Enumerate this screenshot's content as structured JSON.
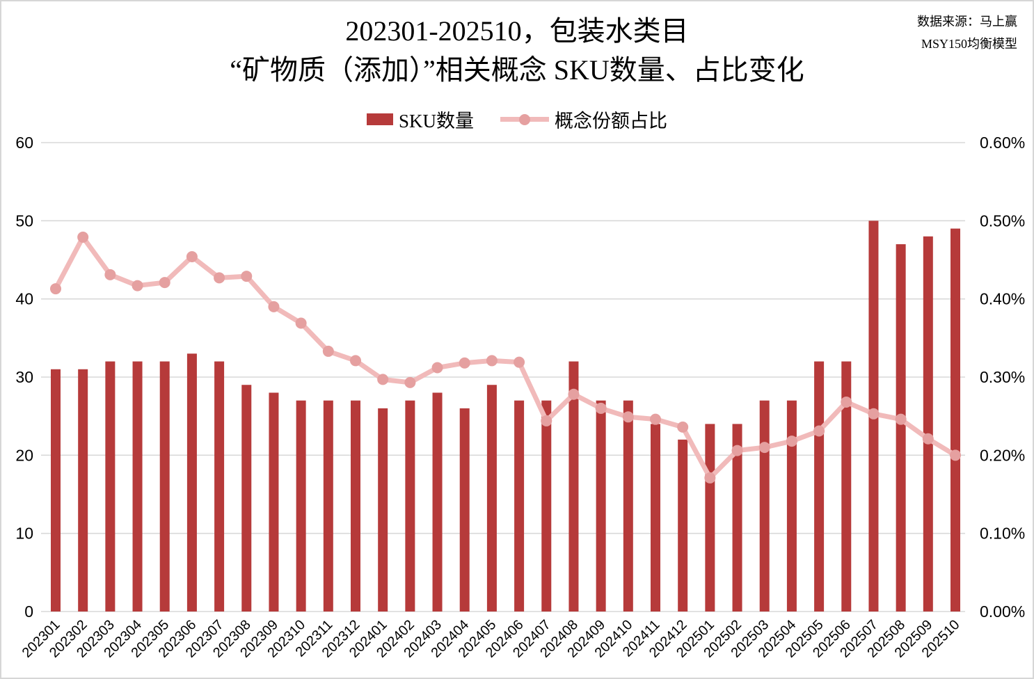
{
  "meta": {
    "title_line1": "202301-202510，包装水类目",
    "title_line2": "“矿物质（添加）”相关概念 SKU数量、占比变化",
    "source_line1": "数据来源：马上赢",
    "source_line2": "MSY150均衡模型"
  },
  "colors": {
    "bar": "#B63A3A",
    "line": "#F1BABA",
    "marker": "#E5A0A0",
    "gridline": "#D9D9D9",
    "text": "#000000"
  },
  "chart_data": {
    "type": "bar",
    "subtype": "bar-line combo, dual axis",
    "title": "202301-202510，包装水类目 “矿物质（添加）”相关概念 SKU数量、占比变化",
    "grid": true,
    "legend_position": "top",
    "categories": [
      "202301",
      "202302",
      "202303",
      "202304",
      "202305",
      "202306",
      "202307",
      "202308",
      "202309",
      "202310",
      "202311",
      "202312",
      "202401",
      "202402",
      "202403",
      "202404",
      "202405",
      "202406",
      "202407",
      "202408",
      "202409",
      "202410",
      "202411",
      "202412",
      "202501",
      "202502",
      "202503",
      "202504",
      "202505",
      "202506",
      "202507",
      "202508",
      "202509",
      "202510"
    ],
    "series": [
      {
        "name": "SKU数量",
        "type": "bar",
        "axis": "left",
        "values": [
          31,
          31,
          32,
          32,
          32,
          33,
          32,
          29,
          28,
          27,
          27,
          27,
          26,
          27,
          28,
          26,
          29,
          27,
          27,
          32,
          27,
          27,
          24,
          22,
          24,
          24,
          27,
          27,
          32,
          32,
          50,
          47,
          48,
          49
        ]
      },
      {
        "name": "概念份额占比",
        "type": "line",
        "axis": "right",
        "unit": "%",
        "values": [
          0.413,
          0.479,
          0.431,
          0.417,
          0.421,
          0.454,
          0.427,
          0.429,
          0.39,
          0.369,
          0.333,
          0.321,
          0.297,
          0.293,
          0.312,
          0.318,
          0.321,
          0.319,
          0.244,
          0.278,
          0.26,
          0.249,
          0.246,
          0.236,
          0.171,
          0.206,
          0.21,
          0.218,
          0.231,
          0.268,
          0.253,
          0.246,
          0.221,
          0.2
        ]
      }
    ],
    "left_axis": {
      "ticks": [
        "0",
        "10",
        "20",
        "30",
        "40",
        "50",
        "60"
      ],
      "range": [
        0,
        60
      ]
    },
    "right_axis": {
      "ticks": [
        "0.00%",
        "0.10%",
        "0.20%",
        "0.30%",
        "0.40%",
        "0.50%",
        "0.60%"
      ],
      "range": [
        0,
        0.6
      ]
    }
  }
}
